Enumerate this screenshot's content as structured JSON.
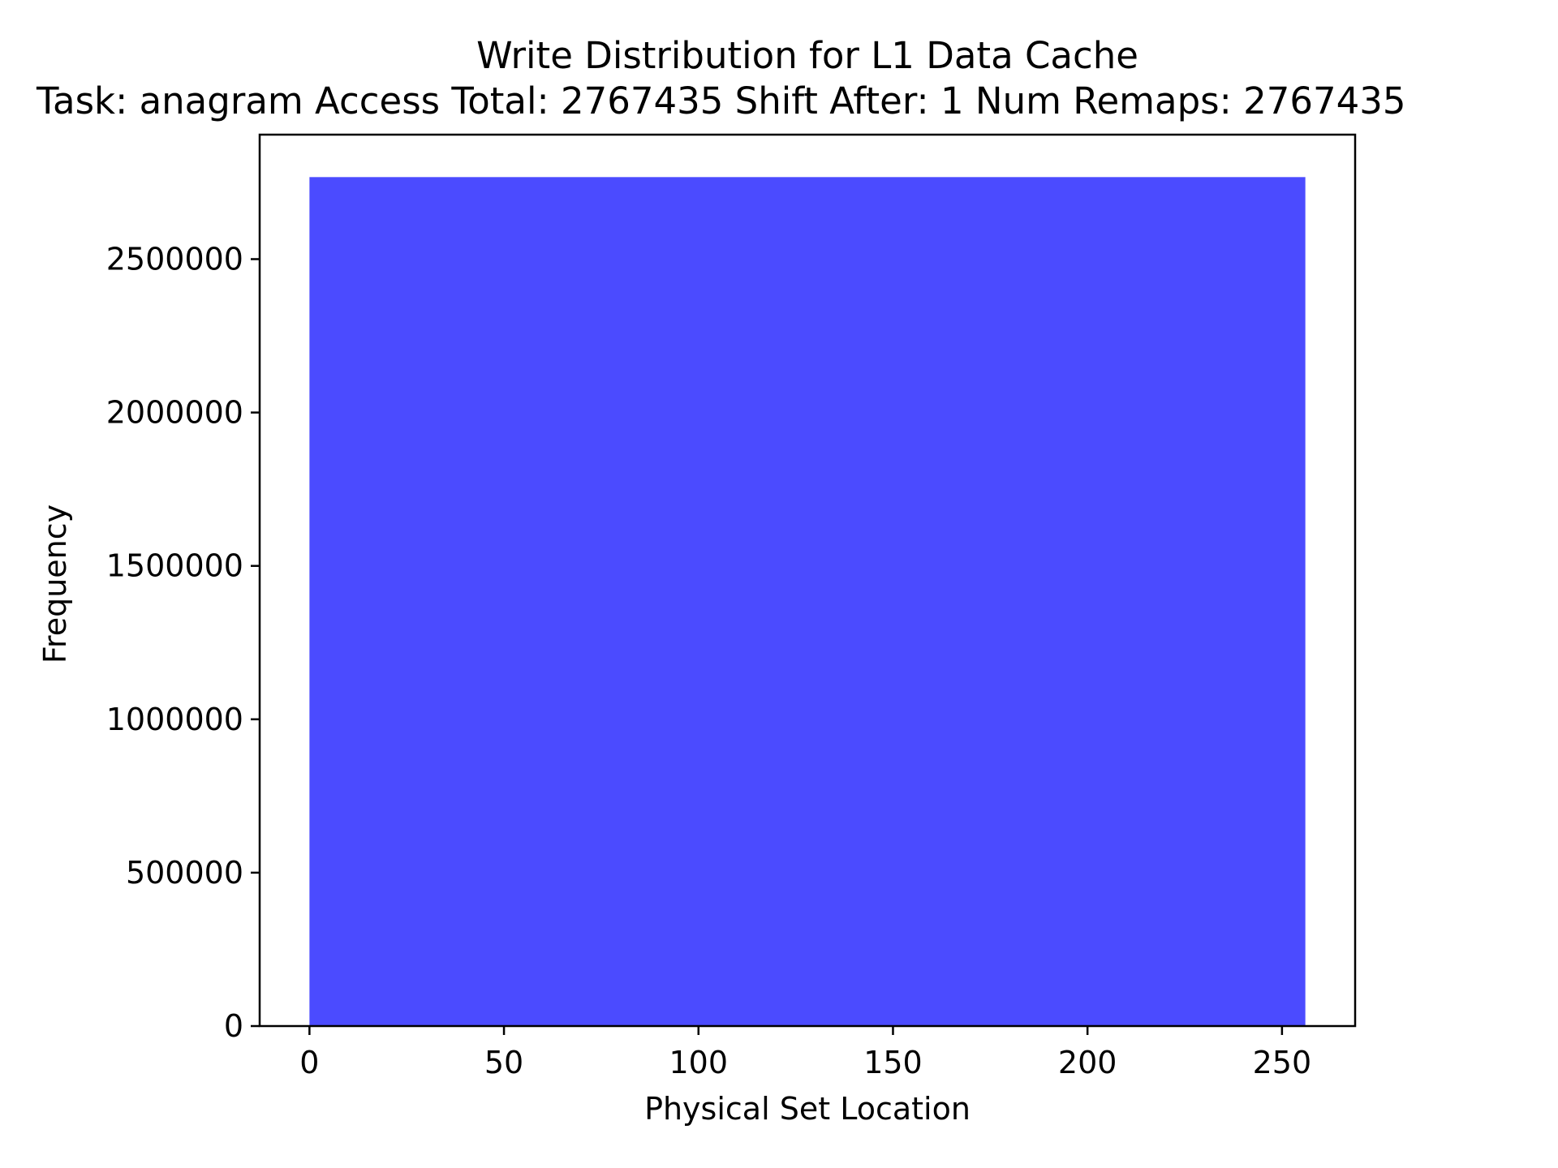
{
  "chart_data": {
    "type": "bar",
    "title": "Write Distribution for L1 Data Cache",
    "subtitle": "Task: anagram Access Total: 2767435 Shift After: 1 Num Remaps: 2767435",
    "xlabel": "Physical Set Location",
    "ylabel": "Frequency",
    "xlim": [
      -12.8,
      268.8
    ],
    "ylim": [
      0,
      2905807
    ],
    "xticks": [
      0,
      50,
      100,
      150,
      200,
      250
    ],
    "yticks": [
      0,
      500000,
      1000000,
      1500000,
      2000000,
      2500000
    ],
    "x_tick_labels": [
      "0",
      "50",
      "100",
      "150",
      "200",
      "250"
    ],
    "y_tick_labels": [
      "0",
      "500000",
      "1000000",
      "1500000",
      "2000000",
      "2500000"
    ],
    "bars": [
      {
        "x_start": 0,
        "x_end": 256,
        "value": 2767435
      }
    ],
    "bar_color": "#4b4bff",
    "grid": false,
    "legend": "none"
  }
}
